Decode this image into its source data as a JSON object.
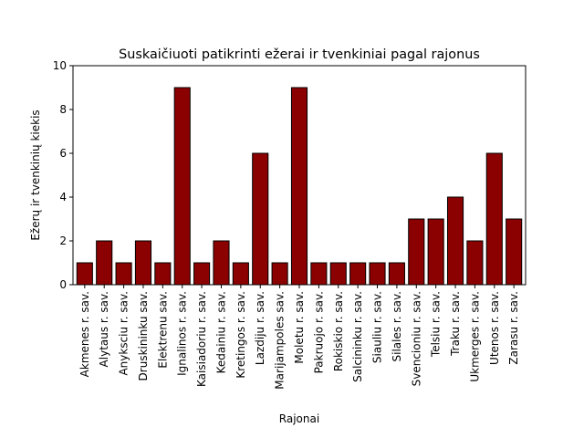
{
  "chart_data": {
    "type": "bar",
    "title": "Suskaičiuoti patikrinti ežerai ir tvenkiniai pagal rajonus",
    "xlabel": "Rajonai",
    "ylabel": "Ežerų ir tvenkinių kiekis",
    "ylim": [
      0,
      10
    ],
    "yticks": [
      0,
      2,
      4,
      6,
      8,
      10
    ],
    "grid": false,
    "bar_color": "#8b0000",
    "edge_color": "#000000",
    "categories": [
      "Akmenes r. sav.",
      "Alytaus r. sav.",
      "Anyksciu r. sav.",
      "Druskininku sav.",
      "Elektrenu sav.",
      "Ignalinos r. sav.",
      "Kaisiadoriu r. sav.",
      "Kedainiu r. sav.",
      "Kretingos r. sav.",
      "Lazdiju r. sav.",
      "Marijampoles sav.",
      "Moletu r. sav.",
      "Pakruojo r. sav.",
      "Rokiskio r. sav.",
      "Salcininku r. sav.",
      "Siauliu r. sav.",
      "Silales r. sav.",
      "Svencioniu r. sav.",
      "Telsiu r. sav.",
      "Traku r. sav.",
      "Ukmerges r. sav.",
      "Utenos r. sav.",
      "Zarasu r. sav."
    ],
    "values": [
      1,
      2,
      1,
      2,
      1,
      9,
      1,
      2,
      1,
      6,
      1,
      9,
      1,
      1,
      1,
      1,
      1,
      3,
      3,
      4,
      2,
      6,
      3
    ]
  }
}
